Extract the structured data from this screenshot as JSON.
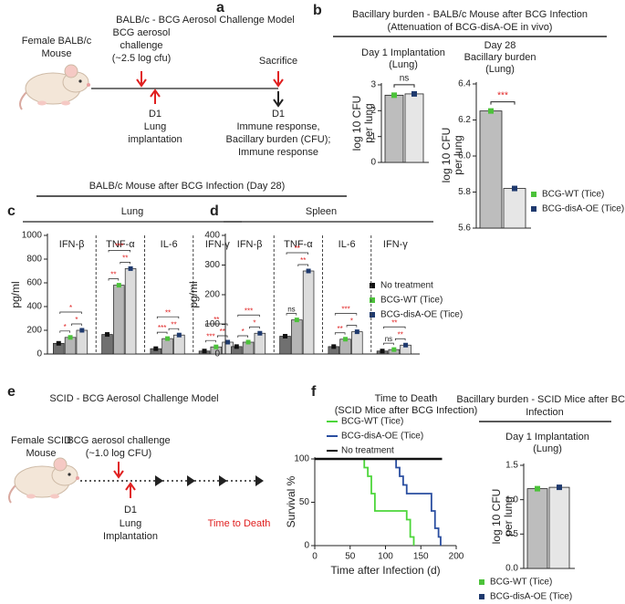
{
  "panel_labels": [
    "a",
    "b",
    "c",
    "d",
    "e",
    "f"
  ],
  "diagram_a": {
    "title": "BALB/c - BCG Aerosol Challenge Model",
    "subject": [
      "Female BALB/c",
      "Mouse"
    ],
    "challenge": [
      "BCG aerosol",
      "challenge",
      "(~2.5 log cfu)"
    ],
    "implant": [
      "D1",
      "Lung",
      "implantation"
    ],
    "sacrifice": "Sacrifice",
    "endpoint": [
      "D1",
      "Immune response,",
      "Bacillary burden (CFU);",
      "Immune response"
    ]
  },
  "panel_b_header": [
    "Bacillary burden - BALB/c Mouse after BCG Infection",
    "(Attenuation of BCG-disA-OE in vivo)"
  ],
  "panel_cd_header": "BALB/c Mouse after BCG Infection (Day 28)",
  "diagram_e": {
    "title": "SCID - BCG Aerosol Challenge Model",
    "subject": [
      "Female SCID",
      "Mouse"
    ],
    "challenge": [
      "BCG aerosol challenge",
      "(~1.0 log CFU)"
    ],
    "implant": [
      "D1",
      "Lung",
      "Implantation"
    ],
    "endpoint": "Time to Death"
  },
  "panel_f_right_header": [
    "Bacillary burden -  SCID Mice after BCG",
    "Infection"
  ],
  "chart_data": [
    {
      "type": "bar",
      "title": [
        "Day 1 Implantation",
        "(Lung)"
      ],
      "ylabel": [
        "log 10 CFU",
        "per lung"
      ],
      "series": [
        {
          "color": "#4cc23a",
          "fill": "#bdbdbd",
          "values": [
            2.6
          ]
        },
        {
          "color": "#1f3a6e",
          "fill": "#e6e6e6",
          "values": [
            2.65
          ]
        }
      ],
      "ylim": [
        0,
        3
      ],
      "yticks": [
        0,
        1,
        2,
        3
      ],
      "annotations": [
        "ns"
      ]
    },
    {
      "type": "bar",
      "title": [
        "Day 28",
        "Bacillary burden",
        "(Lung)"
      ],
      "ylabel": [
        "log 10 CFU",
        "per lung"
      ],
      "series": [
        {
          "name": "BCG-WT (Tice)",
          "color": "#4cc23a",
          "fill": "#bdbdbd",
          "values": [
            6.25
          ]
        },
        {
          "name": "BCG-disA-OE (Tice)",
          "color": "#1f3a6e",
          "fill": "#e6e6e6",
          "values": [
            5.82
          ]
        }
      ],
      "ylim": [
        5.6,
        6.4
      ],
      "yticks": [
        5.6,
        5.8,
        {
          "value": 6,
          "label": "6.0"
        },
        6.2,
        6.4
      ],
      "annotations": [
        "***"
      ]
    },
    {
      "type": "grouped_bar",
      "title": "Lung",
      "ylabel": "pg/ml",
      "categories": [
        "IFN-β",
        "TNF-α",
        "IL-6",
        "IFN-γ"
      ],
      "series": [
        {
          "color": "#111111",
          "fill": "#707070",
          "values": [
            90,
            165,
            45,
            25
          ]
        },
        {
          "color": "#4cc23a",
          "fill": "#b5b5b5",
          "values": [
            140,
            580,
            130,
            60
          ]
        },
        {
          "color": "#1f3a6e",
          "fill": "#dcdcdc",
          "values": [
            200,
            720,
            160,
            100
          ]
        }
      ],
      "ylim": [
        0,
        1000
      ],
      "yticks": [
        0,
        200,
        400,
        600,
        800,
        1000
      ],
      "annotations": [
        [
          "*",
          "*",
          "*"
        ],
        [
          "**",
          "**",
          "***"
        ],
        [
          "***",
          "**",
          "**"
        ],
        [
          "***",
          "**",
          "**"
        ]
      ]
    },
    {
      "type": "grouped_bar",
      "title": "Spleen",
      "ylabel": "pg/ml",
      "categories": [
        "IFN-β",
        "TNF-α",
        "IL-6",
        "IFN-γ"
      ],
      "series": [
        {
          "name": "No treatment",
          "color": "#111111",
          "fill": "#707070",
          "values": [
            25,
            60,
            25,
            10
          ]
        },
        {
          "name": "BCG-WT (Tice)",
          "color": "#4cc23a",
          "fill": "#b5b5b5",
          "values": [
            40,
            115,
            50,
            15
          ]
        },
        {
          "name": "BCG-disA-OE (Tice)",
          "color": "#1f3a6e",
          "fill": "#dcdcdc",
          "values": [
            70,
            280,
            75,
            30
          ]
        }
      ],
      "ylim": [
        0,
        400
      ],
      "yticks": [
        0,
        100,
        200,
        300,
        400
      ],
      "annotations": [
        [
          "*",
          "*",
          "***"
        ],
        [
          "ns",
          "**",
          "**"
        ],
        [
          "**",
          "*",
          "***"
        ],
        [
          "ns",
          "**",
          "**"
        ]
      ]
    },
    {
      "type": "step",
      "title": [
        "Time to Death",
        "(SCID Mice after BCG Infection)"
      ],
      "xlabel": "Time after Infection (d)",
      "ylabel": "Survival %",
      "xlim": [
        0,
        200
      ],
      "xticks": [
        0,
        50,
        100,
        150,
        200
      ],
      "ylim": [
        0,
        100
      ],
      "yticks": [
        0,
        50,
        100
      ],
      "series": [
        {
          "name": "BCG-WT (Tice)",
          "color": "#4cd63a",
          "x": [
            0,
            70,
            75,
            80,
            85,
            130,
            135,
            140
          ],
          "values": [
            100,
            90,
            80,
            60,
            40,
            30,
            10,
            0
          ]
        },
        {
          "name": "BCG-disA-OE (Tice)",
          "color": "#2a4ea0",
          "x": [
            0,
            115,
            120,
            125,
            130,
            165,
            170,
            175,
            178
          ],
          "values": [
            100,
            90,
            80,
            70,
            60,
            40,
            20,
            10,
            0
          ]
        },
        {
          "name": "No treatment",
          "color": "#111111",
          "x": [
            0,
            180
          ],
          "values": [
            100,
            100
          ]
        }
      ]
    },
    {
      "type": "bar",
      "title": [
        "Day 1 Implantation",
        "(Lung)"
      ],
      "ylabel": [
        "log 10 CFU",
        "per lung"
      ],
      "series": [
        {
          "name": "BCG-WT (Tice)",
          "color": "#4cc23a",
          "fill": "#bdbdbd",
          "values": [
            1.16
          ]
        },
        {
          "name": "BCG-disA-OE (Tice)",
          "color": "#1f3a6e",
          "fill": "#e6e6e6",
          "values": [
            1.18
          ]
        }
      ],
      "ylim": [
        0,
        1.5
      ],
      "yticks": [
        {
          "value": 0,
          "label": "0.0"
        },
        0.5,
        {
          "value": 1,
          "label": "1.0"
        },
        1.5
      ]
    }
  ]
}
